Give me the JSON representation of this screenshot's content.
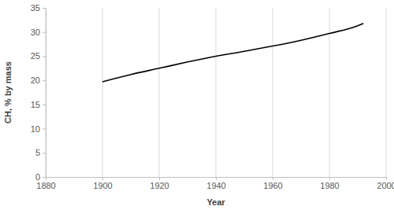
{
  "chart_data": {
    "type": "line",
    "x_label": "Year",
    "y_label": "CH, % by mass",
    "x": [
      1900,
      1910,
      1920,
      1930,
      1940,
      1950,
      1960,
      1970,
      1980,
      1990,
      1992
    ],
    "values": [
      19.7,
      21.2,
      22.5,
      23.8,
      25.0,
      26.0,
      27.1,
      28.3,
      29.7,
      31.3,
      31.8
    ],
    "color": "#000000",
    "xlim": [
      1880,
      2000
    ],
    "xticks": [
      1880,
      1900,
      1920,
      1940,
      1960,
      1980,
      2000
    ],
    "ylim": [
      0,
      35
    ],
    "yticks": [
      0,
      5,
      10,
      15,
      20,
      25,
      30,
      35
    ],
    "grid": "x"
  }
}
